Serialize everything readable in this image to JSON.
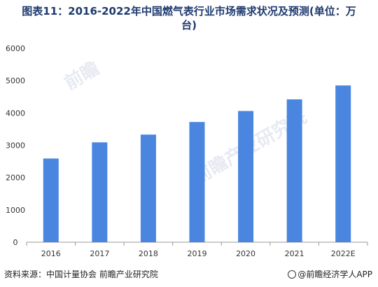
{
  "page": {
    "title_line1": "图表11：2016-2022年中国燃气表行业市场需求状况及预测(单位：万",
    "title_line2": "台)",
    "source": "资料来源：中国计量协会 前瞻产业研究院",
    "brand": "@前瞻经济学人APP",
    "watermark_1": "前瞻",
    "watermark_2": "前瞻产业研究院"
  },
  "colors": {
    "bar": "#4a86e0",
    "axis": "#999999",
    "tick_text": "#333333"
  },
  "chart_data": {
    "type": "bar",
    "categories": [
      "2016",
      "2017",
      "2018",
      "2019",
      "2020",
      "2021",
      "2022E"
    ],
    "values": [
      2590,
      3090,
      3330,
      3720,
      4060,
      4420,
      4850
    ],
    "ylim": [
      0,
      6000
    ],
    "yticks": [
      0,
      1000,
      2000,
      3000,
      4000,
      5000,
      6000
    ],
    "grid": false,
    "legend": "none"
  }
}
